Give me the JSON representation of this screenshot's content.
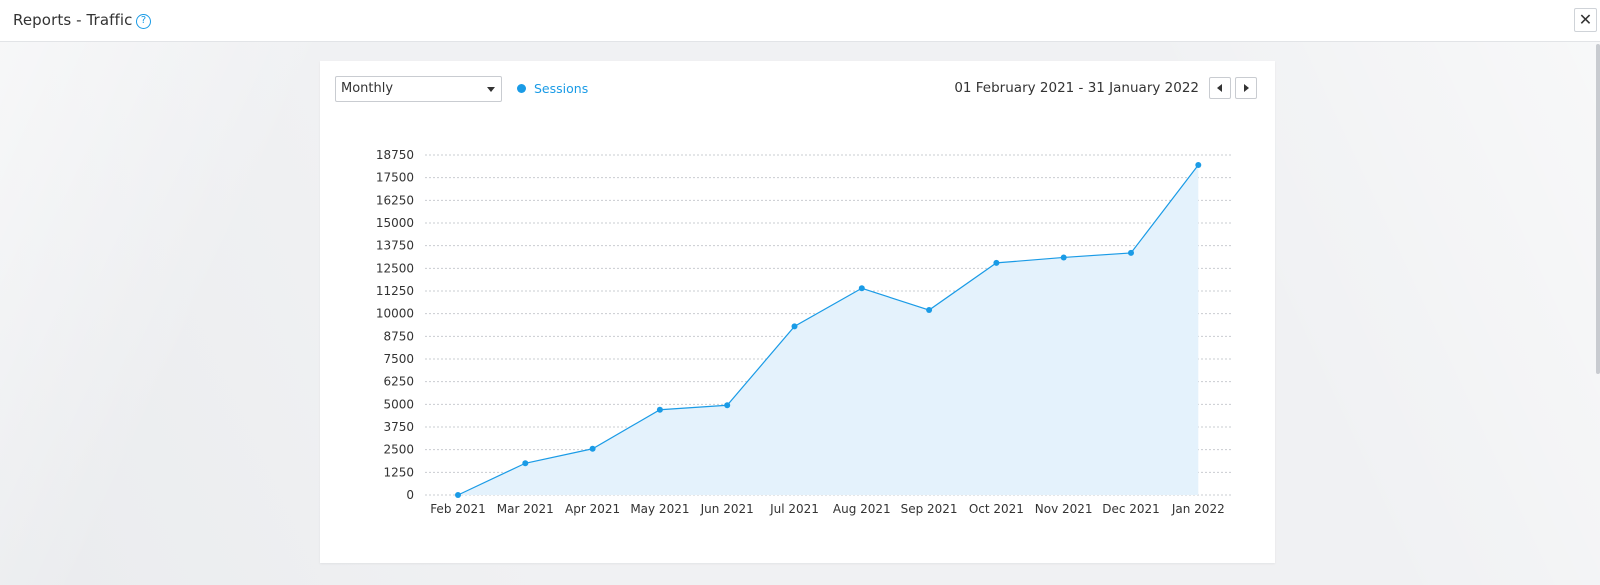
{
  "window": {
    "title": "Reports - Traffic",
    "help_icon": "question-circle-icon",
    "close_icon": "close-icon",
    "close_glyph": "✕",
    "help_glyph": "?"
  },
  "controls": {
    "period_select": {
      "value": "Monthly",
      "icon": "chevron-down-icon"
    },
    "legend": {
      "label": "Sessions",
      "color": "#1a9be6"
    },
    "date_range": "01 February 2021 - 31 January 2022",
    "prev_icon": "caret-left-icon",
    "next_icon": "caret-right-icon"
  },
  "colors": {
    "accent": "#1a9be6",
    "area_fill": "#e4f2fc",
    "grid": "#c9ccd1"
  },
  "chart_data": {
    "type": "area",
    "categories": [
      "Feb 2021",
      "Mar 2021",
      "Apr 2021",
      "May 2021",
      "Jun 2021",
      "Jul 2021",
      "Aug 2021",
      "Sep 2021",
      "Oct 2021",
      "Nov 2021",
      "Dec 2021",
      "Jan 2022"
    ],
    "series": [
      {
        "name": "Sessions",
        "values": [
          0,
          1750,
          2550,
          4700,
          4950,
          9300,
          11400,
          10200,
          12800,
          13100,
          13350,
          18200
        ]
      }
    ],
    "yticks": [
      0,
      1250,
      2500,
      3750,
      5000,
      6250,
      7500,
      8750,
      10000,
      11250,
      12500,
      13750,
      15000,
      16250,
      17500,
      18750
    ],
    "ylim": [
      0,
      18750
    ],
    "grid": true,
    "legend_position": "top-left"
  }
}
